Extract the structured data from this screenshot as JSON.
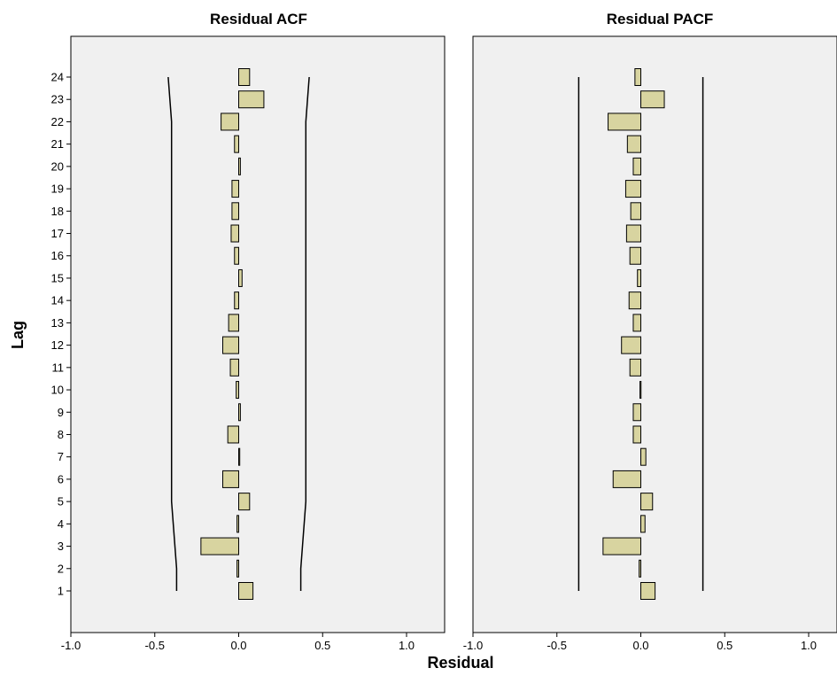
{
  "chart_data": {
    "type": "bar",
    "orientation": "horizontal",
    "ylabel": "Lag",
    "xlabel": "Residual",
    "categories": [
      1,
      2,
      3,
      4,
      5,
      6,
      7,
      8,
      9,
      10,
      11,
      12,
      13,
      14,
      15,
      16,
      17,
      18,
      19,
      20,
      21,
      22,
      23,
      24
    ],
    "xlim": [
      -1.0,
      1.0
    ],
    "xticks": [
      "-1.0",
      "-0.5",
      "0.0",
      "0.5",
      "1.0"
    ],
    "bar_color": "#d8d4a0",
    "panel_color": "#f0f0f0",
    "panels": [
      {
        "title": "Residual ACF",
        "values": [
          0.085,
          -0.01,
          -0.225,
          -0.01,
          0.065,
          -0.095,
          0.005,
          -0.065,
          0.01,
          -0.015,
          -0.05,
          -0.095,
          -0.06,
          -0.025,
          0.02,
          -0.025,
          -0.045,
          -0.04,
          -0.04,
          0.01,
          -0.025,
          -0.105,
          0.15,
          0.065
        ],
        "confidence_upper": [
          0.37,
          0.37,
          0.38,
          0.39,
          0.4,
          0.4,
          0.4,
          0.4,
          0.4,
          0.4,
          0.4,
          0.4,
          0.4,
          0.4,
          0.4,
          0.4,
          0.4,
          0.4,
          0.4,
          0.4,
          0.4,
          0.4,
          0.41,
          0.42
        ],
        "confidence_lower": [
          -0.37,
          -0.37,
          -0.38,
          -0.39,
          -0.4,
          -0.4,
          -0.4,
          -0.4,
          -0.4,
          -0.4,
          -0.4,
          -0.4,
          -0.4,
          -0.4,
          -0.4,
          -0.4,
          -0.4,
          -0.4,
          -0.4,
          -0.4,
          -0.4,
          -0.4,
          -0.41,
          -0.42
        ]
      },
      {
        "title": "Residual PACF",
        "values": [
          0.085,
          -0.01,
          -0.225,
          0.025,
          0.07,
          -0.165,
          0.03,
          -0.045,
          -0.045,
          -0.005,
          -0.065,
          -0.115,
          -0.045,
          -0.07,
          -0.02,
          -0.065,
          -0.085,
          -0.06,
          -0.09,
          -0.045,
          -0.08,
          -0.195,
          0.14,
          -0.035
        ],
        "confidence_upper": [
          0.37,
          0.37,
          0.37,
          0.37,
          0.37,
          0.37,
          0.37,
          0.37,
          0.37,
          0.37,
          0.37,
          0.37,
          0.37,
          0.37,
          0.37,
          0.37,
          0.37,
          0.37,
          0.37,
          0.37,
          0.37,
          0.37,
          0.37,
          0.37
        ],
        "confidence_lower": [
          -0.37,
          -0.37,
          -0.37,
          -0.37,
          -0.37,
          -0.37,
          -0.37,
          -0.37,
          -0.37,
          -0.37,
          -0.37,
          -0.37,
          -0.37,
          -0.37,
          -0.37,
          -0.37,
          -0.37,
          -0.37,
          -0.37,
          -0.37,
          -0.37,
          -0.37,
          -0.37,
          -0.37
        ]
      }
    ]
  }
}
